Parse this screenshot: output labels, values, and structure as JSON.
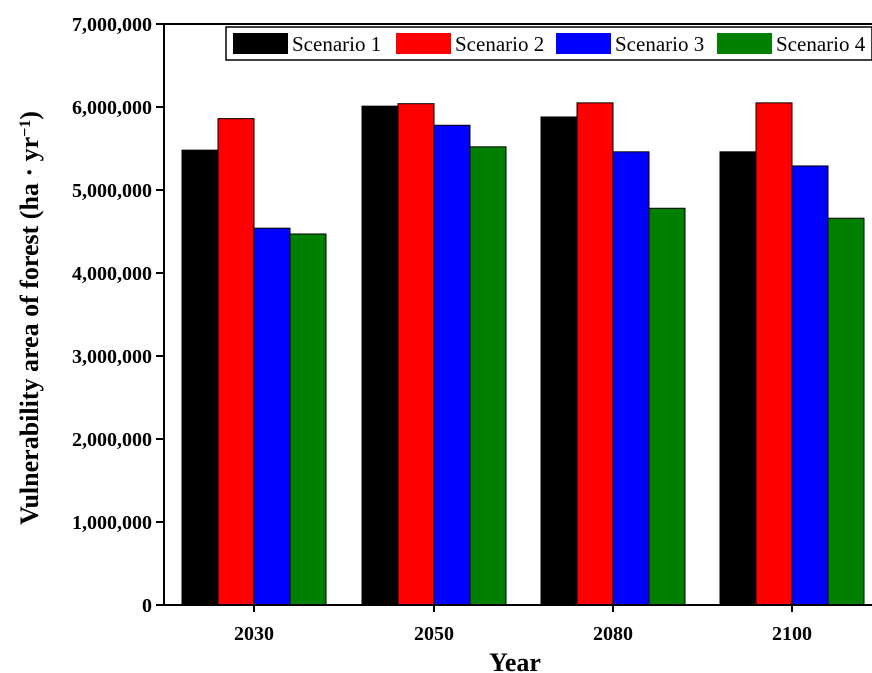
{
  "chart_data": {
    "type": "bar",
    "categories": [
      "2030",
      "2050",
      "2080",
      "2100"
    ],
    "series": [
      {
        "name": "Scenario 1",
        "color": "#000000",
        "values": [
          5480000,
          6010000,
          5880000,
          5460000
        ]
      },
      {
        "name": "Scenario 2",
        "color": "#ff0000",
        "values": [
          5860000,
          6040000,
          6050000,
          6050000
        ]
      },
      {
        "name": "Scenario 3",
        "color": "#0000ff",
        "values": [
          4540000,
          5780000,
          5460000,
          5290000
        ]
      },
      {
        "name": "Scenario 4",
        "color": "#008000",
        "values": [
          4470000,
          5520000,
          4780000,
          4660000
        ]
      }
    ],
    "title": "",
    "xlabel": "Year",
    "ylabel_main": "Vulnerability area of forest (ha · yr",
    "ylabel_sup": "−1",
    "ylabel_close": ")",
    "ylim": [
      0,
      7000000
    ],
    "yticks": [
      {
        "value": 0,
        "label": "0"
      },
      {
        "value": 1000000,
        "label": "1,000,000"
      },
      {
        "value": 2000000,
        "label": "2,000,000"
      },
      {
        "value": 3000000,
        "label": "3,000,000"
      },
      {
        "value": 4000000,
        "label": "4,000,000"
      },
      {
        "value": 5000000,
        "label": "5,000,000"
      },
      {
        "value": 6000000,
        "label": "6,000,000"
      },
      {
        "value": 7000000,
        "label": "7,000,000"
      }
    ],
    "grid": false,
    "legend": "top"
  }
}
